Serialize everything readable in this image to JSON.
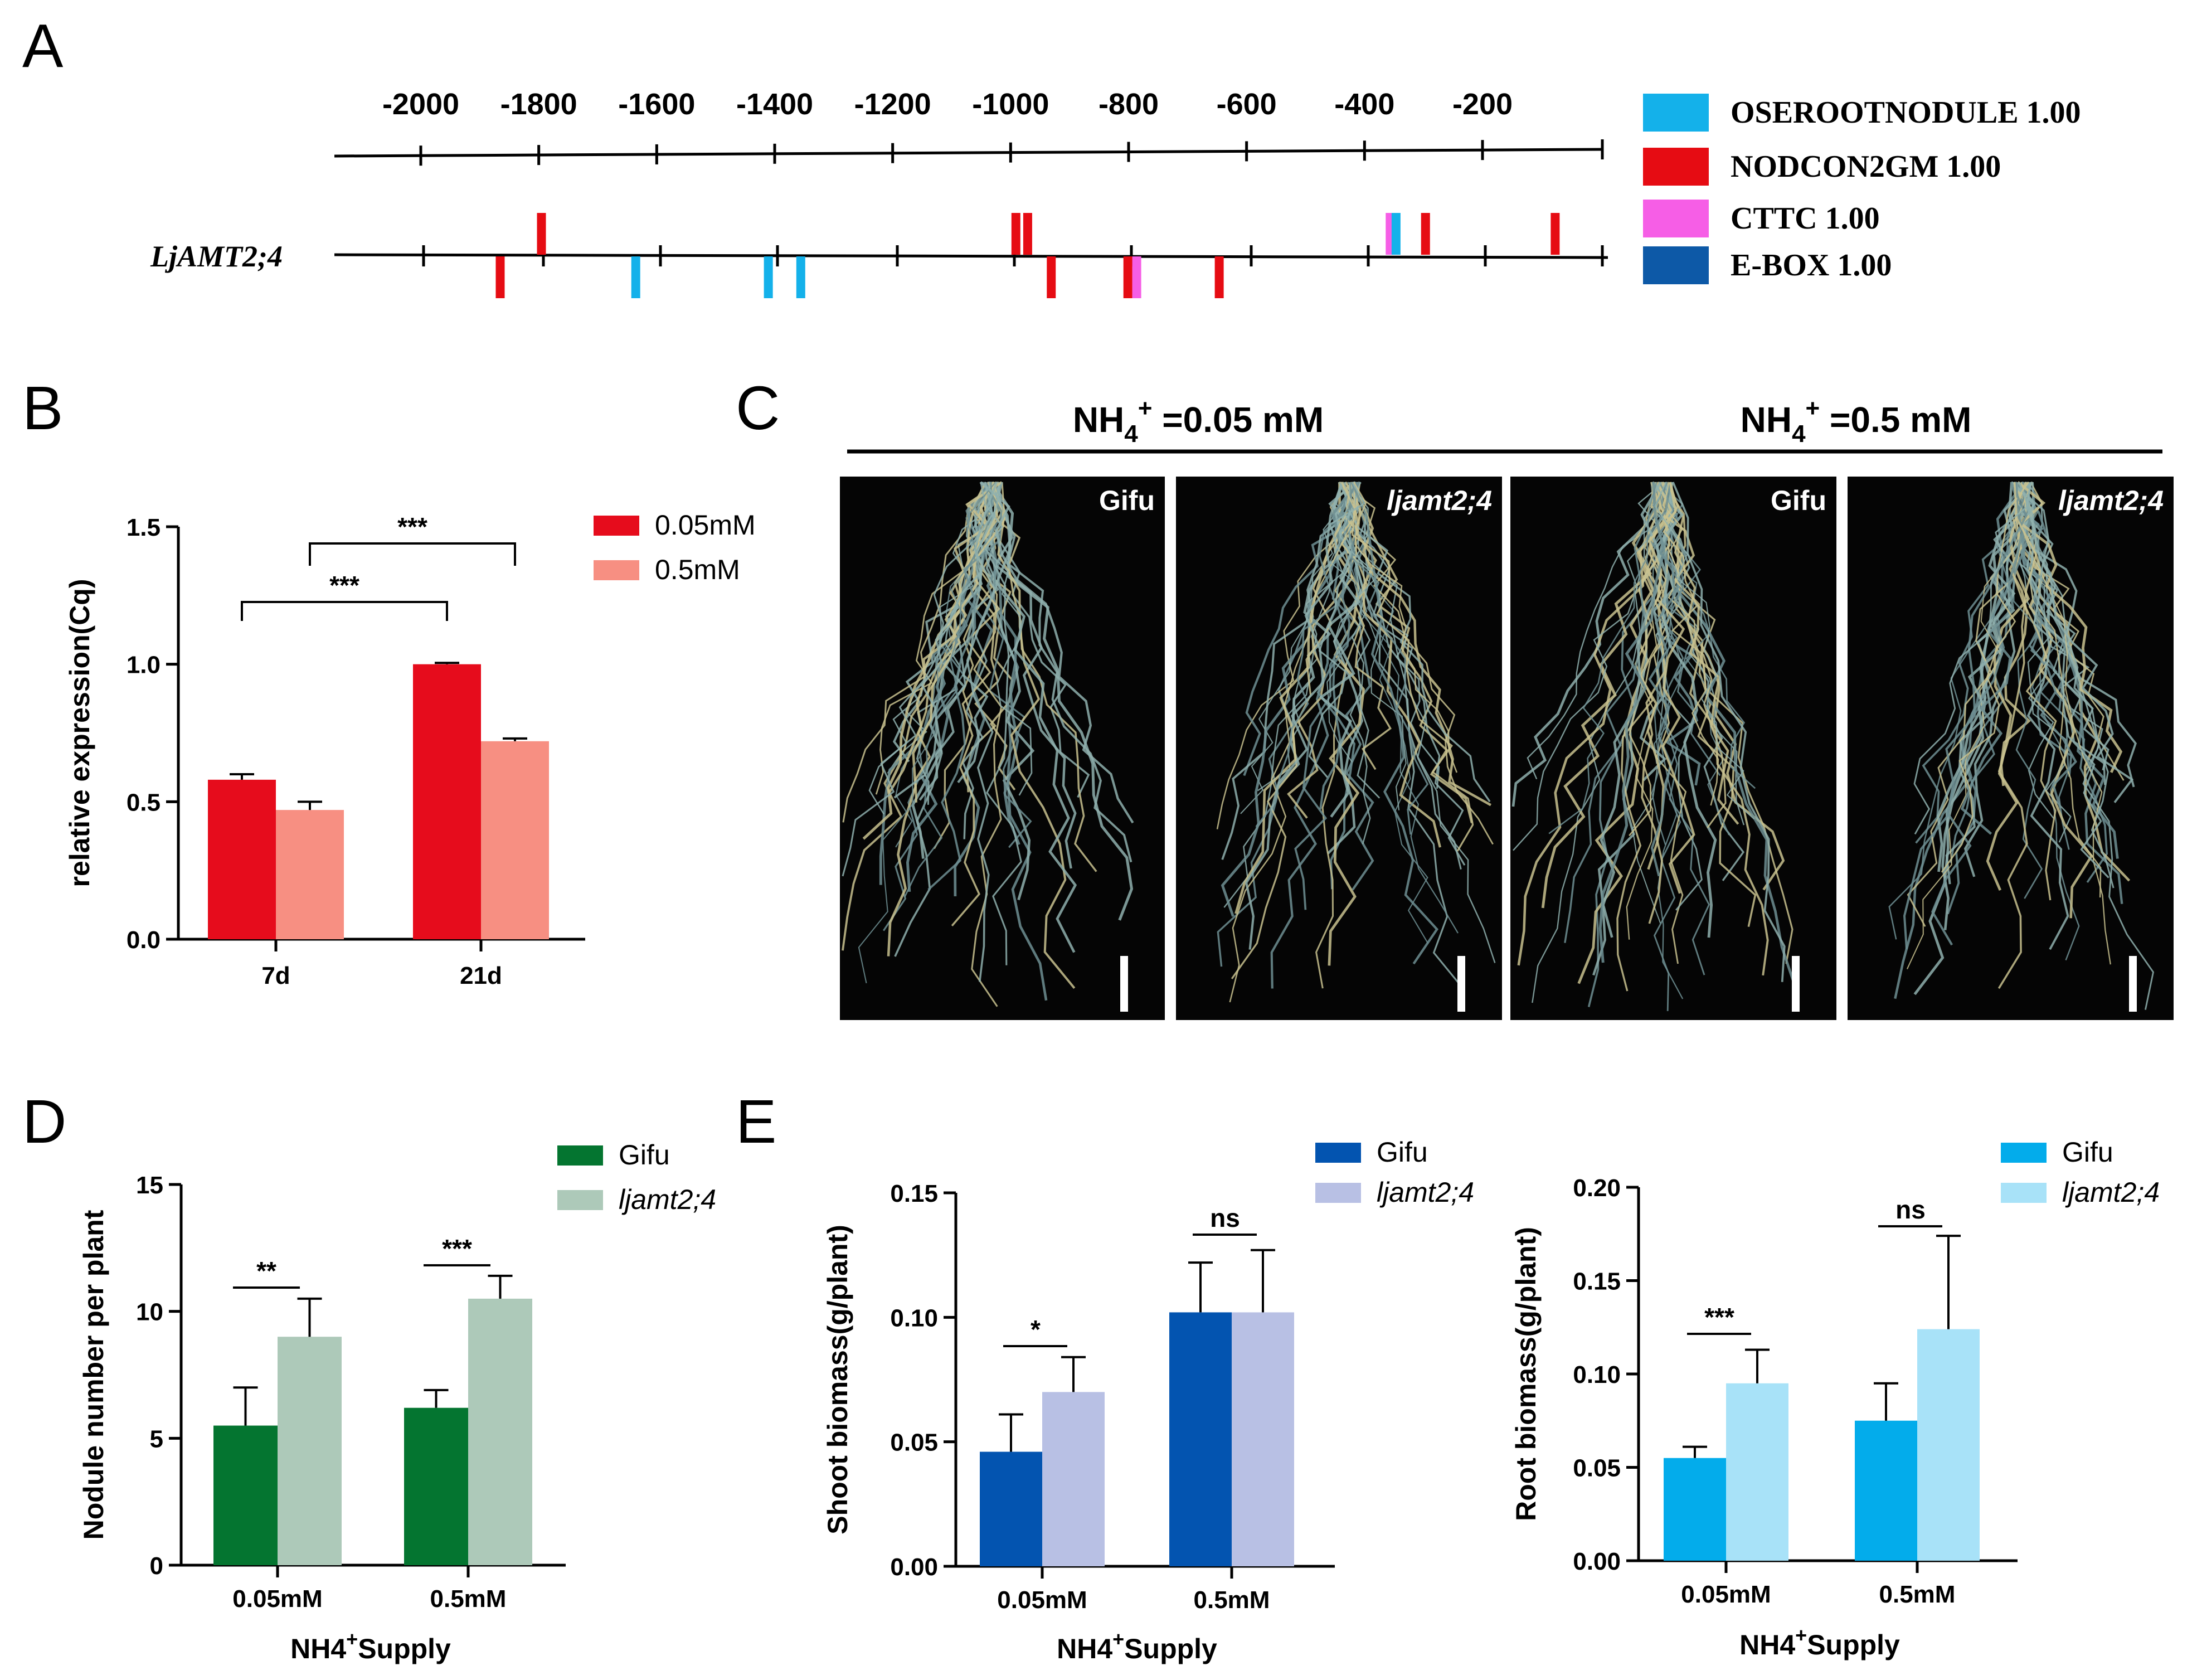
{
  "panel_letters": {
    "a": "A",
    "b": "B",
    "c": "C",
    "d": "D",
    "e": "E"
  },
  "chart_data": [
    {
      "id": "A",
      "type": "diagram",
      "gene": "LjAMT2;4",
      "axis_ticks": [
        "-2000",
        "-1800",
        "-1600",
        "-1400",
        "-1200",
        "-1000",
        "-800",
        "-600",
        "-400",
        "-200"
      ],
      "axis_tick_values": [
        -2000,
        -1800,
        -1600,
        -1400,
        -1200,
        -1000,
        -800,
        -600,
        -400,
        -200
      ],
      "legend": [
        {
          "name": "OSEROOTNODULE 1.00",
          "color": "#14b1ea"
        },
        {
          "name": "NODCON2GM 1.00",
          "color": "#e60c13"
        },
        {
          "name": "CTTC 1.00",
          "color": "#f65ee6"
        },
        {
          "name": "E-BOX 1.00",
          "color": "#0d59a7"
        }
      ],
      "elements": [
        {
          "pos": -1800,
          "strand": "+",
          "type": "NODCON2GM 1.00"
        },
        {
          "pos": -1870,
          "strand": "-",
          "type": "NODCON2GM 1.00"
        },
        {
          "pos": -1640,
          "strand": "-",
          "type": "OSEROOTNODULE 1.00"
        },
        {
          "pos": -1415,
          "strand": "-",
          "type": "OSEROOTNODULE 1.00"
        },
        {
          "pos": -1360,
          "strand": "-",
          "type": "OSEROOTNODULE 1.00"
        },
        {
          "pos": -995,
          "strand": "+",
          "type": "NODCON2GM 1.00"
        },
        {
          "pos": -975,
          "strand": "+",
          "type": "NODCON2GM 1.00"
        },
        {
          "pos": -935,
          "strand": "-",
          "type": "NODCON2GM 1.00"
        },
        {
          "pos": -805,
          "strand": "-",
          "type": "NODCON2GM 1.00"
        },
        {
          "pos": -790,
          "strand": "-",
          "type": "CTTC 1.00"
        },
        {
          "pos": -650,
          "strand": "-",
          "type": "NODCON2GM 1.00"
        },
        {
          "pos": -360,
          "strand": "+",
          "type": "CTTC 1.00"
        },
        {
          "pos": -350,
          "strand": "+",
          "type": "OSEROOTNODULE 1.00"
        },
        {
          "pos": -300,
          "strand": "+",
          "type": "NODCON2GM 1.00"
        },
        {
          "pos": -80,
          "strand": "+",
          "type": "NODCON2GM 1.00"
        }
      ]
    },
    {
      "id": "B",
      "type": "bar",
      "ylabel": "relative expression(Cq)",
      "categories": [
        "7d",
        "21d"
      ],
      "ylim": [
        0,
        1.5
      ],
      "yticks": [
        "0.0",
        "0.5",
        "1.0",
        "1.5"
      ],
      "series": [
        {
          "name": "0.05mM",
          "color": "#e60c1c",
          "values": [
            0.58,
            1.0
          ],
          "errors": [
            0.02,
            0.005
          ]
        },
        {
          "name": "0.5mM",
          "color": "#f78f82",
          "values": [
            0.47,
            0.72
          ],
          "errors": [
            0.03,
            0.01
          ]
        }
      ],
      "significance": [
        {
          "label": "***",
          "from": [
            0,
            0
          ],
          "to": [
            1,
            0
          ]
        },
        {
          "label": "***",
          "from": [
            0,
            1
          ],
          "to": [
            1,
            1
          ]
        }
      ]
    },
    {
      "id": "C",
      "type": "photo_panel",
      "conditions": [
        "NH4+ =0.05 mM",
        "NH4+ =0.5 mM"
      ],
      "photos": [
        "Gifu",
        "ljamt2;4",
        "Gifu",
        "ljamt2;4"
      ]
    },
    {
      "id": "D",
      "type": "bar",
      "ylabel": "Nodule number per plant",
      "xlabel": "NH4+Supply",
      "categories": [
        "0.05mM",
        "0.5mM"
      ],
      "ylim": [
        0,
        15
      ],
      "yticks": [
        "0",
        "5",
        "10",
        "15"
      ],
      "series": [
        {
          "name": "Gifu",
          "color": "#047530",
          "values": [
            5.5,
            6.2
          ],
          "errors": [
            1.5,
            0.7
          ]
        },
        {
          "name": "ljamt2;4",
          "color": "#adc9b9",
          "values": [
            9.0,
            10.5
          ],
          "errors": [
            1.5,
            0.9
          ]
        }
      ],
      "significance": [
        {
          "category": 0,
          "label": "**"
        },
        {
          "category": 1,
          "label": "***"
        }
      ]
    },
    {
      "id": "E1",
      "type": "bar",
      "ylabel": "Shoot biomass(g/plant)",
      "xlabel": "NH4+Supply",
      "categories": [
        "0.05mM",
        "0.5mM"
      ],
      "ylim": [
        0,
        0.15
      ],
      "yticks": [
        "0.00",
        "0.05",
        "0.10",
        "0.15"
      ],
      "series": [
        {
          "name": "Gifu",
          "color": "#0354b0",
          "values": [
            0.046,
            0.102
          ],
          "errors": [
            0.015,
            0.02
          ]
        },
        {
          "name": "ljamt2;4",
          "color": "#b8c0e4",
          "values": [
            0.07,
            0.102
          ],
          "errors": [
            0.014,
            0.025
          ]
        }
      ],
      "significance": [
        {
          "category": 0,
          "label": "*"
        },
        {
          "category": 1,
          "label": "ns"
        }
      ]
    },
    {
      "id": "E2",
      "type": "bar",
      "ylabel": "Root biomass(g/plant)",
      "xlabel": "NH4+Supply",
      "categories": [
        "0.05mM",
        "0.5mM"
      ],
      "ylim": [
        0,
        0.2
      ],
      "yticks": [
        "0.00",
        "0.05",
        "0.10",
        "0.15",
        "0.20"
      ],
      "series": [
        {
          "name": "Gifu",
          "color": "#03aceb",
          "values": [
            0.055,
            0.075
          ],
          "errors": [
            0.006,
            0.02
          ]
        },
        {
          "name": "ljamt2;4",
          "color": "#a8e2f8",
          "values": [
            0.095,
            0.124
          ],
          "errors": [
            0.018,
            0.05
          ]
        }
      ],
      "significance": [
        {
          "category": 0,
          "label": "***"
        },
        {
          "category": 1,
          "label": "ns"
        }
      ]
    }
  ]
}
